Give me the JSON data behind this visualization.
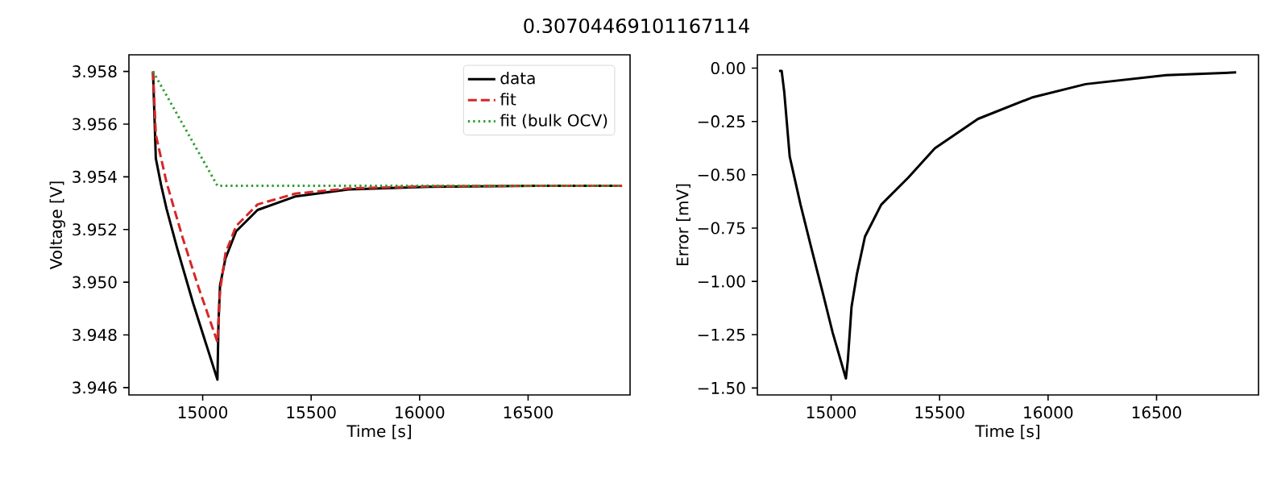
{
  "chart_data": [
    {
      "type": "line",
      "title": "0.30704469101167114",
      "xlabel": "Time [s]",
      "ylabel": "Voltage [V]",
      "xlim": [
        14660,
        16970
      ],
      "ylim": [
        3.94572,
        3.95863
      ],
      "xticks": [
        15000,
        15500,
        16000,
        16500
      ],
      "yticks": [
        {
          "value": 3.946,
          "label": "3.946"
        },
        {
          "value": 3.948,
          "label": "3.948"
        },
        {
          "value": 3.95,
          "label": "3.950"
        },
        {
          "value": 3.952,
          "label": "3.952"
        },
        {
          "value": 3.954,
          "label": "3.954"
        },
        {
          "value": 3.956,
          "label": "3.956"
        },
        {
          "value": 3.958,
          "label": "3.958"
        }
      ],
      "legend": "top right",
      "grid": false,
      "series": [
        {
          "name": "data",
          "color": "#000000",
          "line_style": "solid",
          "x": [
            14771,
            14784,
            14808,
            14833,
            14882,
            14956,
            15068,
            15073,
            15080,
            15105,
            15154,
            15253,
            15426,
            15673,
            16044,
            16538,
            16933
          ],
          "values": [
            3.958,
            3.9547,
            3.9537,
            3.9528,
            3.9513,
            3.9492,
            3.9463,
            3.9485,
            3.94988,
            3.9509,
            3.95193,
            3.95274,
            3.95325,
            3.95352,
            3.95362,
            3.95366,
            3.95366
          ]
        },
        {
          "name": "fit",
          "color": "#d62728",
          "line_style": "dashed",
          "x": [
            14771,
            14784,
            14833,
            14907,
            14981,
            15068,
            15080,
            15105,
            15154,
            15253,
            15426,
            15673,
            16044,
            16538,
            16933
          ],
          "values": [
            3.958,
            3.9556,
            3.9538,
            3.9517,
            3.9498,
            3.94773,
            3.94967,
            3.9511,
            3.95213,
            3.95295,
            3.95336,
            3.95356,
            3.95364,
            3.95366,
            3.95366
          ]
        },
        {
          "name": "fit (bulk OCV)",
          "color": "#2ca02c",
          "line_style": "dotted",
          "x": [
            14771,
            15068,
            16933
          ],
          "values": [
            3.958,
            3.95366,
            3.95366
          ]
        }
      ]
    },
    {
      "type": "line",
      "xlabel": "Time [s]",
      "ylabel": "Error [mV]",
      "xlim": [
        14660,
        16970
      ],
      "ylim": [
        -1.5325,
        0.0625
      ],
      "xticks": [
        15000,
        15500,
        16000,
        16500
      ],
      "yticks": [
        {
          "value": -1.5,
          "label": "−1.50"
        },
        {
          "value": -1.25,
          "label": "−1.25"
        },
        {
          "value": -1.0,
          "label": "−1.00"
        },
        {
          "value": -0.75,
          "label": "−0.75"
        },
        {
          "value": -0.5,
          "label": "−0.50"
        },
        {
          "value": -0.25,
          "label": "−0.25"
        },
        {
          "value": 0,
          "label": "0.00"
        }
      ],
      "grid": false,
      "legend": false,
      "series": [
        {
          "color": "#000000",
          "line_style": "solid",
          "x": [
            14760,
            14772,
            14784,
            14809,
            14859,
            14908,
            14958,
            15007,
            15068,
            15077,
            15094,
            15119,
            15156,
            15231,
            15355,
            15478,
            15677,
            15925,
            16173,
            16544,
            16867
          ],
          "values": [
            -0.013,
            -0.013,
            -0.113,
            -0.414,
            -0.64,
            -0.84,
            -1.04,
            -1.24,
            -1.455,
            -1.37,
            -1.12,
            -0.965,
            -0.79,
            -0.64,
            -0.514,
            -0.376,
            -0.238,
            -0.138,
            -0.075,
            -0.033,
            -0.02
          ]
        }
      ]
    }
  ]
}
